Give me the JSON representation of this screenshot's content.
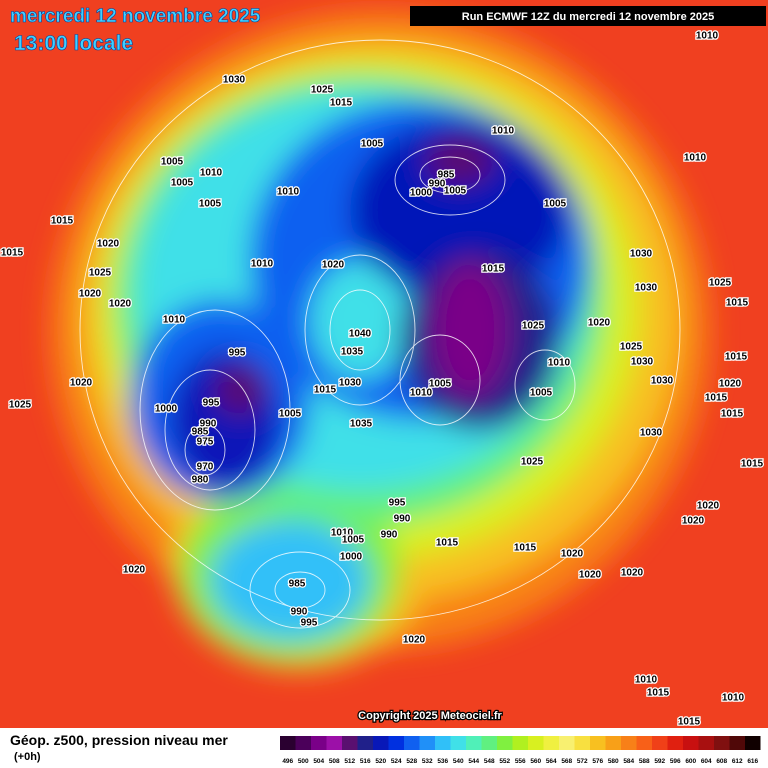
{
  "header": {
    "date": "mercredi 12 novembre 2025",
    "time": "13:00 locale",
    "run": "Run ECMWF 12Z du mercredi 12 novembre 2025"
  },
  "copyright": "Copyright 2025 Meteociel.fr",
  "legend": {
    "title": "Géop. z500, pression niveau mer",
    "subtitle": "(+0h)",
    "scale": [
      496,
      500,
      504,
      508,
      512,
      516,
      520,
      524,
      528,
      532,
      536,
      540,
      544,
      548,
      552,
      556,
      560,
      564,
      568,
      572,
      576,
      580,
      584,
      588,
      592,
      596,
      600,
      604,
      608,
      612,
      616
    ],
    "colors": [
      "#2a0030",
      "#4b005a",
      "#7a0088",
      "#9c10a8",
      "#5a1070",
      "#20208a",
      "#0818b8",
      "#0030e0",
      "#1060f0",
      "#2090f8",
      "#30c0f8",
      "#40e0e8",
      "#50f0b8",
      "#60f080",
      "#80f040",
      "#b0f020",
      "#d8f020",
      "#f0f040",
      "#f8f070",
      "#f8e040",
      "#f8c020",
      "#f8a018",
      "#f88018",
      "#f86018",
      "#f04018",
      "#e02010",
      "#c81010",
      "#a81010",
      "#801010",
      "#500808",
      "#100000"
    ]
  },
  "isobar_labels": [
    "1010",
    "1030",
    "1025",
    "1015",
    "1010",
    "1005",
    "1010",
    "1005",
    "1010",
    "1005",
    "985",
    "990",
    "1000",
    "1005",
    "1010",
    "1005",
    "1005",
    "1015",
    "1020",
    "1015",
    "1030",
    "1010",
    "1020",
    "1025",
    "1015",
    "1030",
    "1025",
    "1020",
    "1015",
    "1020",
    "1010",
    "1025",
    "1020",
    "1040",
    "1025",
    "995",
    "1035",
    "1015",
    "1030",
    "1010",
    "1020",
    "1030",
    "1005",
    "1015",
    "1030",
    "1020",
    "1010",
    "1005",
    "1015",
    "1025",
    "995",
    "1000",
    "1005",
    "1015",
    "1035",
    "990",
    "985",
    "975",
    "1030",
    "970",
    "1025",
    "1015",
    "980",
    "995",
    "1020",
    "990",
    "1020",
    "1010",
    "990",
    "1005",
    "1015",
    "1015",
    "1000",
    "1020",
    "1020",
    "1020",
    "1020",
    "985",
    "990",
    "995",
    "1020",
    "1010",
    "1015",
    "1010",
    "1015"
  ]
}
